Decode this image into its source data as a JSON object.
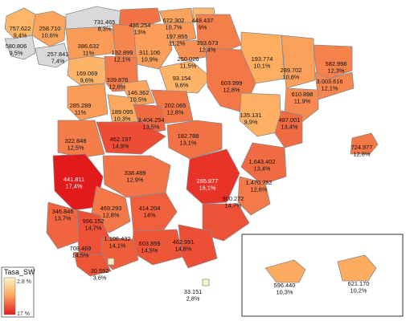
{
  "legend": {
    "title": "Tasa_SW",
    "min_label": "2,8 %",
    "max_label": "17 %",
    "color_low": "#fdf3c4",
    "color_high": "#e31a1c"
  },
  "no_data_color": "#d9d9d9",
  "regions": [
    {
      "id": "a-coruna",
      "value": "757.622",
      "rate": "9,4%",
      "rate_num": 9.4
    },
    {
      "id": "lugo",
      "value": "258.710",
      "rate": "10,6%",
      "rate_num": 10.6
    },
    {
      "id": "asturias",
      "value": "731.465",
      "rate": "8,3%",
      "rate_num": null
    },
    {
      "id": "pontevedra",
      "value": "580.806",
      "rate": "9,5%",
      "rate_num": null
    },
    {
      "id": "ourense",
      "value": "257.841",
      "rate": "7,4%",
      "rate_num": null
    },
    {
      "id": "cantabria",
      "value": "436.254",
      "rate": "13%",
      "rate_num": 13.0
    },
    {
      "id": "bizkaia",
      "value": "672.302",
      "rate": "10,7%",
      "rate_num": 10.7
    },
    {
      "id": "gipuzkoa",
      "value": "448.437",
      "rate": "9%",
      "rate_num": 9.0
    },
    {
      "id": "araba",
      "value": "197.855",
      "rate": "11,2%",
      "rate_num": 11.2
    },
    {
      "id": "navarra",
      "value": "393.673",
      "rate": "12,4%",
      "rate_num": 12.4
    },
    {
      "id": "leon",
      "value": "386.632",
      "rate": "11%",
      "rate_num": 11.0
    },
    {
      "id": "palencia",
      "value": "132.899",
      "rate": "12,1%",
      "rate_num": 12.1
    },
    {
      "id": "burgos",
      "value": "311.106",
      "rate": "10,9%",
      "rate_num": 10.9
    },
    {
      "id": "la-rioja",
      "value": "250.026",
      "rate": "11,5%",
      "rate_num": 11.5
    },
    {
      "id": "huesca",
      "value": "193.774",
      "rate": "10,1%",
      "rate_num": 10.1
    },
    {
      "id": "lleida",
      "value": "289.702",
      "rate": "10,8%",
      "rate_num": 10.8
    },
    {
      "id": "girona",
      "value": "582.998",
      "rate": "12,3%",
      "rate_num": 12.3
    },
    {
      "id": "barcelona",
      "value": "3.003.616",
      "rate": "12,1%",
      "rate_num": 12.1
    },
    {
      "id": "zamora",
      "value": "169.069",
      "rate": "9,6%",
      "rate_num": 9.6
    },
    {
      "id": "valladolid",
      "value": "339.876",
      "rate": "12,6%",
      "rate_num": 12.6
    },
    {
      "id": "soria",
      "value": "93.154",
      "rate": "9,6%",
      "rate_num": 9.6
    },
    {
      "id": "zaragoza",
      "value": "603.999",
      "rate": "12,8%",
      "rate_num": 12.8
    },
    {
      "id": "tarragona",
      "value": "610.898",
      "rate": "11,9%",
      "rate_num": 11.9
    },
    {
      "id": "segovia",
      "value": "146.362",
      "rate": "10,5%",
      "rate_num": 10.5
    },
    {
      "id": "salamanca",
      "value": "285.289",
      "rate": "11%",
      "rate_num": 11.0
    },
    {
      "id": "avila",
      "value": "189.095",
      "rate": "10,3%",
      "rate_num": 10.3
    },
    {
      "id": "guadalajara",
      "value": "202.065",
      "rate": "12,8%",
      "rate_num": 12.8
    },
    {
      "id": "teruel",
      "value": "135.131",
      "rate": "9,9%",
      "rate_num": 9.9
    },
    {
      "id": "castellon",
      "value": "487.001",
      "rate": "13,4%",
      "rate_num": 13.4
    },
    {
      "id": "madrid",
      "value": "3.404.254",
      "rate": "13,5%",
      "rate_num": 13.5
    },
    {
      "id": "toledo",
      "value": "462.197",
      "rate": "14,9%",
      "rate_num": 14.9
    },
    {
      "id": "cuenca",
      "value": "182.788",
      "rate": "13,1%",
      "rate_num": 13.1
    },
    {
      "id": "caceres",
      "value": "322.848",
      "rate": "12,5%",
      "rate_num": 12.5
    },
    {
      "id": "valencia",
      "value": "1.643.402",
      "rate": "13,4%",
      "rate_num": 13.4
    },
    {
      "id": "baleares",
      "value": "724.977",
      "rate": "12,8%",
      "rate_num": 12.8
    },
    {
      "id": "badajoz",
      "value": "441.811",
      "rate": "17,4%",
      "rate_num": 17.4
    },
    {
      "id": "ciudad-real",
      "value": "338.489",
      "rate": "12,9%",
      "rate_num": 12.9
    },
    {
      "id": "albacete",
      "value": "285.877",
      "rate": "16,1%",
      "rate_num": 16.1
    },
    {
      "id": "alicante",
      "value": "1.470.752",
      "rate": "12,6%",
      "rate_num": 12.6
    },
    {
      "id": "cordoba",
      "value": "469.293",
      "rate": "12,8%",
      "rate_num": 12.8
    },
    {
      "id": "jaen",
      "value": "414.204",
      "rate": "14%",
      "rate_num": 14.0
    },
    {
      "id": "murcia",
      "value": "900.272",
      "rate": "14,7%",
      "rate_num": 14.7
    },
    {
      "id": "huelva",
      "value": "346.846",
      "rate": "13,7%",
      "rate_num": 13.7
    },
    {
      "id": "sevilla",
      "value": "996.152",
      "rate": "14,7%",
      "rate_num": 14.7
    },
    {
      "id": "granada",
      "value": "603.859",
      "rate": "14,5%",
      "rate_num": 14.5
    },
    {
      "id": "almeria",
      "value": "462.991",
      "rate": "14,8%",
      "rate_num": 14.8
    },
    {
      "id": "malaga",
      "value": "1.106.432",
      "rate": "14,1%",
      "rate_num": 14.1
    },
    {
      "id": "cadiz",
      "value": "708.469",
      "rate": "14,5%",
      "rate_num": 14.5
    },
    {
      "id": "ceuta",
      "value": "30.552",
      "rate": "3,6%",
      "rate_num": 3.6
    },
    {
      "id": "melilla",
      "value": "33.151",
      "rate": "2,8%",
      "rate_num": 2.8
    },
    {
      "id": "las-palmas",
      "value": "596.440",
      "rate": "10,3%",
      "rate_num": 10.3
    },
    {
      "id": "santa-cruz-tenerife",
      "value": "621.170",
      "rate": "10,2%",
      "rate_num": 10.2
    }
  ]
}
